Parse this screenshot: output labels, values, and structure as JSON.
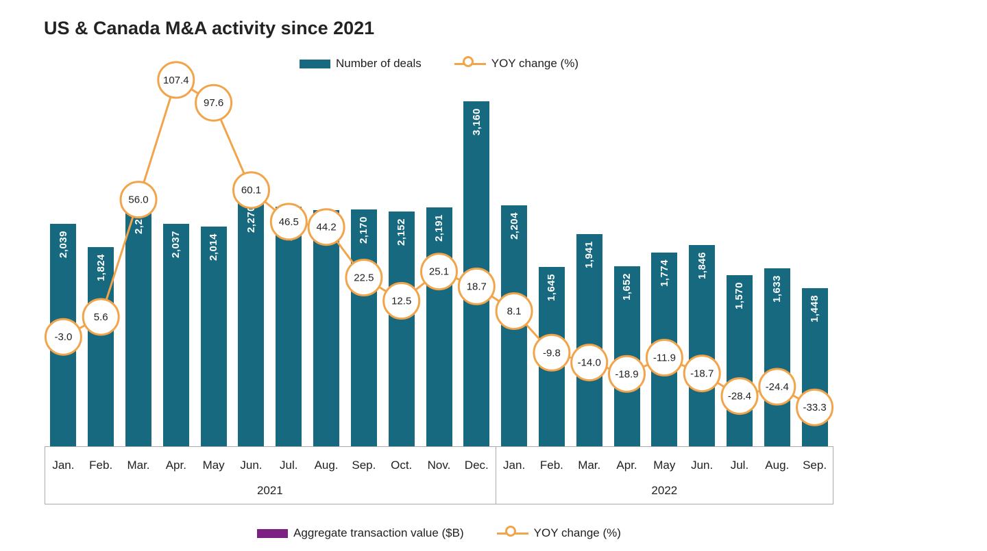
{
  "title": "US & Canada M&A activity since 2021",
  "colors": {
    "bar": "#16697f",
    "line": "#f2a44a",
    "aggregate": "#7c2182",
    "axis_border": "#a9a9a9",
    "text": "#1f1f1f"
  },
  "legend_top": {
    "bars_label": "Number of deals",
    "line_label": "YOY change (%)"
  },
  "legend_bottom": {
    "bars_label": "Aggregate transaction value ($B)",
    "line_label": "YOY change (%)"
  },
  "chart_data": {
    "type": "bar",
    "title": "US & Canada M&A activity since 2021",
    "categories": [
      "Jan.",
      "Feb.",
      "Mar.",
      "Apr.",
      "May",
      "Jun.",
      "Jul.",
      "Aug.",
      "Sep.",
      "Oct.",
      "Nov.",
      "Dec.",
      "Jan.",
      "Feb.",
      "Mar.",
      "Apr.",
      "May",
      "Jun.",
      "Jul.",
      "Aug.",
      "Sep."
    ],
    "year_groups": [
      {
        "label": "2021",
        "start": 0,
        "end": 11
      },
      {
        "label": "2022",
        "start": 12,
        "end": 20
      }
    ],
    "series": [
      {
        "name": "Number of deals",
        "type": "bar",
        "values": [
          2039,
          1824,
          2258,
          2037,
          2014,
          2270,
          2192,
          2160,
          2170,
          2152,
          2191,
          3160,
          2204,
          1645,
          1941,
          1652,
          1774,
          1846,
          1570,
          1633,
          1448
        ]
      },
      {
        "name": "YOY change (%)",
        "type": "line",
        "values": [
          -3.0,
          5.6,
          56.0,
          107.4,
          97.6,
          60.1,
          46.5,
          44.2,
          22.5,
          12.5,
          25.1,
          18.7,
          8.1,
          -9.8,
          -14.0,
          -18.9,
          -11.9,
          -18.7,
          -28.4,
          -24.4,
          -33.3
        ]
      }
    ],
    "bar_ylim": [
      0,
      3300
    ],
    "legend_position": "top",
    "grid": false
  }
}
